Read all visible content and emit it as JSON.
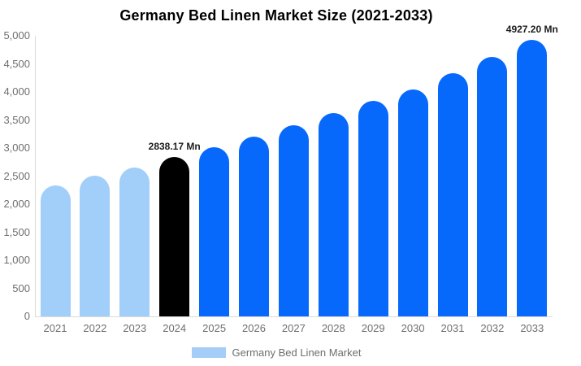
{
  "chart_data": {
    "type": "bar",
    "title": "Germany Bed Linen Market Size (2021-2033)",
    "categories": [
      "2021",
      "2022",
      "2023",
      "2024",
      "2025",
      "2026",
      "2027",
      "2028",
      "2029",
      "2030",
      "2031",
      "2032",
      "2033"
    ],
    "series": [
      {
        "name": "Germany Bed Linen Market",
        "values": [
          2330,
          2510,
          2650,
          2838.17,
          3010,
          3210,
          3400,
          3620,
          3840,
          4050,
          4340,
          4630,
          4927.2
        ]
      }
    ],
    "point_labels": [
      "",
      "",
      "",
      "2838.17 Mn",
      "",
      "",
      "",
      "",
      "",
      "",
      "",
      "",
      "4927.20 Mn"
    ],
    "point_colors": [
      "#A2CEFA",
      "#A2CEFA",
      "#A2CEFA",
      "#000000",
      "#0669FC",
      "#0669FC",
      "#0669FC",
      "#0669FC",
      "#0669FC",
      "#0669FC",
      "#0669FC",
      "#0669FC",
      "#0669FC"
    ],
    "xlabel": "",
    "ylabel": "",
    "ylim": [
      0,
      5000
    ],
    "y_ticks": [
      0,
      500,
      1000,
      1500,
      2000,
      2500,
      3000,
      3500,
      4000,
      4500,
      5000
    ],
    "y_tick_labels": [
      "0",
      "500",
      "1,000",
      "1,500",
      "2,000",
      "2,500",
      "3,000",
      "3,500",
      "4,000",
      "4,500",
      "5,000"
    ],
    "grid": false,
    "legend": {
      "position": "bottom",
      "label": "Germany Bed Linen Market",
      "swatch_color": "#A6CDF7"
    },
    "colors": {
      "historical_bar": "#A2CEFA",
      "highlight_bar": "#000000",
      "forecast_bar": "#0669FC",
      "axis_line": "#DBDBDB",
      "tick_text": "#6F6F6F",
      "value_label_text": "#1C1C1C",
      "title_text": "#000000",
      "background": "#FFFFFF"
    }
  }
}
